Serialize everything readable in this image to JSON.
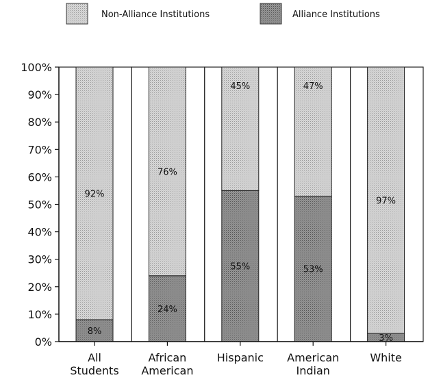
{
  "chart_data": {
    "type": "bar",
    "stacked": true,
    "categories": [
      [
        "All",
        "Students"
      ],
      [
        "African",
        "American"
      ],
      [
        "Hispanic"
      ],
      [
        "American",
        "Indian"
      ],
      [
        "White"
      ]
    ],
    "series": [
      {
        "name": "Alliance Institutions",
        "values": [
          8,
          24,
          55,
          53,
          3
        ],
        "labels": [
          "8%",
          "24%",
          "55%",
          "53%",
          "3%"
        ],
        "color": "#8a8a8a"
      },
      {
        "name": "Non-Alliance Institutions",
        "values": [
          92,
          76,
          45,
          47,
          97
        ],
        "labels": [
          "92%",
          "76%",
          "45%",
          "47%",
          "97%"
        ],
        "color": "#d2d2d2"
      }
    ],
    "ylim": [
      0,
      100
    ],
    "yticks": [
      "0%",
      "10%",
      "20%",
      "30%",
      "40%",
      "50%",
      "60%",
      "70%",
      "80%",
      "90%",
      "100%"
    ],
    "legend": {
      "placement": "top",
      "order": [
        "Non-Alliance Institutions",
        "Alliance Institutions"
      ]
    },
    "grid": false
  }
}
